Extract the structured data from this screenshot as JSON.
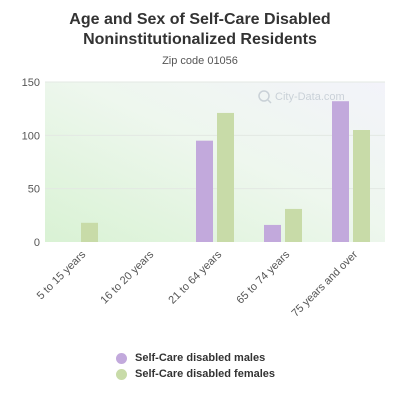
{
  "chart_data": {
    "type": "bar",
    "title": "Age and Sex of Self-Care Disabled Noninstitutionalized Residents",
    "subtitle": "Zip code 01056",
    "categories": [
      "5 to 15 years",
      "16 to 20 years",
      "21 to 64 years",
      "65 to 74 years",
      "75 years and over"
    ],
    "series": [
      {
        "name": "Self-Care disabled males",
        "color": "#c2a9dc",
        "values": [
          0,
          0,
          95,
          16,
          132
        ]
      },
      {
        "name": "Self-Care disabled females",
        "color": "#c8dba8",
        "values": [
          18,
          0,
          121,
          31,
          105
        ]
      }
    ],
    "ylim": [
      0,
      150
    ],
    "yticks": [
      0,
      50,
      100,
      150
    ],
    "grid": true,
    "legend": "bottom",
    "watermark": "City-Data.com"
  }
}
